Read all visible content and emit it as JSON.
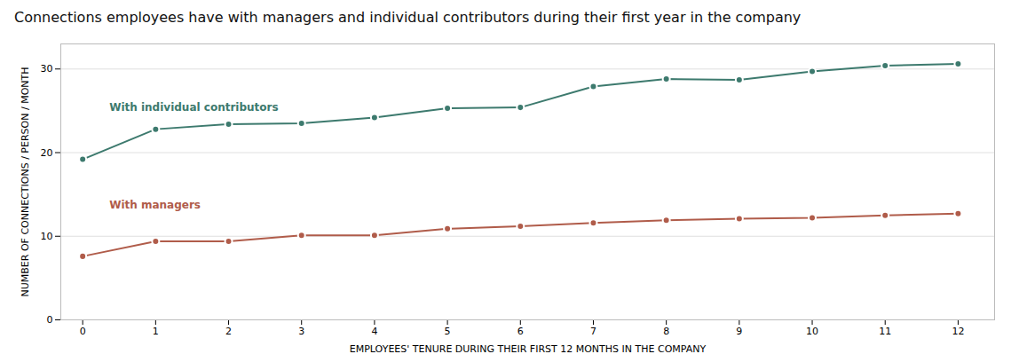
{
  "chart_data": {
    "type": "line",
    "title": "Connections employees have with managers and individual contributors during their first year in the company",
    "xlabel": "EMPLOYEES' TENURE DURING THEIR FIRST 12 MONTHS IN THE COMPANY",
    "ylabel": "NUMBER OF CONNECTIONS / PERSON / MONTH",
    "x": [
      0,
      1,
      2,
      3,
      4,
      5,
      6,
      7,
      8,
      9,
      10,
      11,
      12
    ],
    "series": [
      {
        "name": "With individual contributors",
        "color": "#3d7a6e",
        "marker": "circle",
        "values": [
          19.2,
          22.8,
          23.4,
          23.5,
          24.2,
          25.3,
          25.4,
          27.9,
          28.8,
          28.7,
          29.7,
          30.4,
          30.6
        ]
      },
      {
        "name": "With managers",
        "color": "#b05c4a",
        "marker": "circle",
        "values": [
          7.6,
          9.4,
          9.4,
          10.1,
          10.1,
          10.9,
          11.2,
          11.6,
          11.9,
          12.1,
          12.2,
          12.5,
          12.7
        ]
      }
    ],
    "xlim": [
      -0.3,
      12.5
    ],
    "xticks": [
      0,
      1,
      2,
      3,
      4,
      5,
      6,
      7,
      8,
      9,
      10,
      11,
      12
    ],
    "ylim": [
      0,
      33
    ],
    "yticks": [
      0,
      10,
      20,
      30
    ],
    "grid": true
  }
}
